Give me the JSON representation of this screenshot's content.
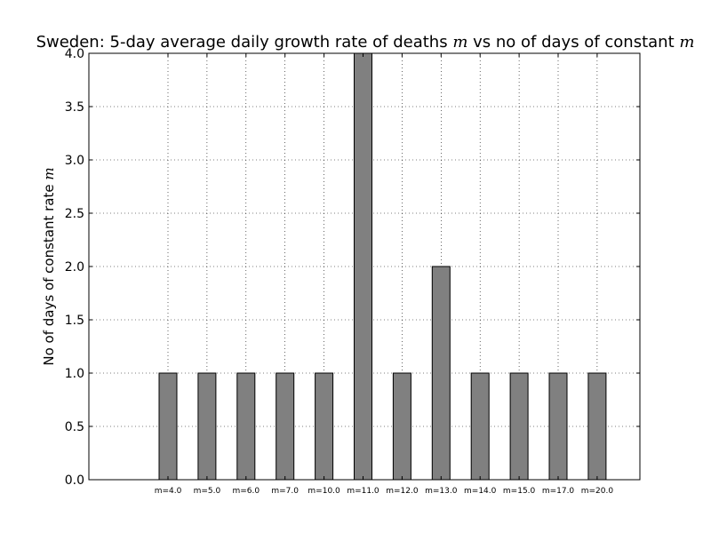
{
  "chart_data": {
    "type": "bar",
    "title": {
      "prefix": "Sweden: 5-day average daily growth rate of deaths ",
      "var1": "m",
      "middle": " vs no of days of constant ",
      "var2": "m"
    },
    "ylabel": {
      "prefix": "No of days of constant rate ",
      "var": "m"
    },
    "xlabel": "",
    "categories": [
      "m=4.0",
      "m=5.0",
      "m=6.0",
      "m=7.0",
      "m=10.0",
      "m=11.0",
      "m=12.0",
      "m=13.0",
      "m=14.0",
      "m=15.0",
      "m=17.0",
      "m=20.0"
    ],
    "values": [
      1,
      1,
      1,
      1,
      1,
      4,
      1,
      2,
      1,
      1,
      1,
      1
    ],
    "ylim": [
      0,
      4.0
    ],
    "yticks": [
      "0.0",
      "0.5",
      "1.0",
      "1.5",
      "2.0",
      "2.5",
      "3.0",
      "3.5",
      "4.0"
    ],
    "grid": true,
    "bar_color": "#808080"
  }
}
